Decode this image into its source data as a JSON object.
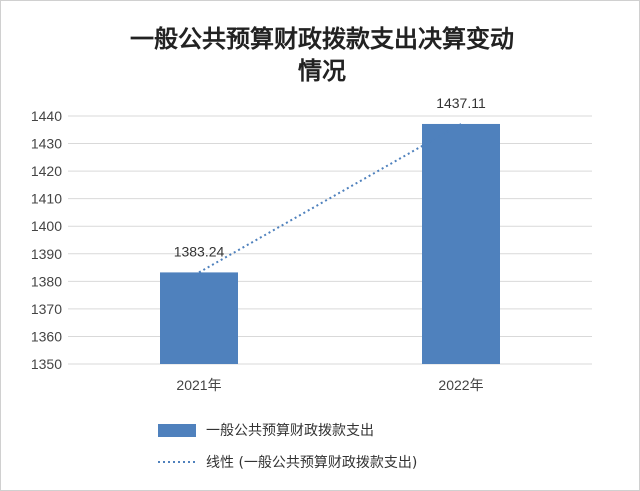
{
  "chart_data": {
    "type": "bar",
    "title_line1": "一般公共预算财政拨款支出决算变动",
    "title_line2": "情况",
    "categories": [
      "2021年",
      "2022年"
    ],
    "series": [
      {
        "name": "一般公共预算财政拨款支出",
        "values": [
          1383.24,
          1437.11
        ],
        "data_labels": [
          "1383.24",
          "1437.11"
        ],
        "color": "#4f81bd"
      }
    ],
    "trendline": {
      "type": "linear",
      "name": "线性 (一般公共预算财政拨款支出)",
      "color": "#4f81bd",
      "style": "dotted"
    },
    "y_ticks": [
      "1350",
      "1360",
      "1370",
      "1380",
      "1390",
      "1400",
      "1410",
      "1420",
      "1430",
      "1440"
    ],
    "ylim": [
      1350,
      1440
    ],
    "grid": true,
    "legend_position": "bottom"
  }
}
